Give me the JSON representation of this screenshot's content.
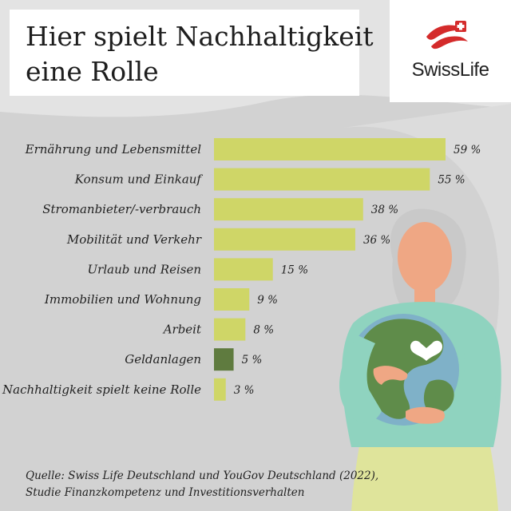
{
  "header": {
    "title_line1": "Hier spielt Nachhaltigkeit",
    "title_line2": "eine Rolle"
  },
  "logo": {
    "text": "SwissLife",
    "color": "#d42b2b",
    "icon": "swisslife-flag-icon"
  },
  "colors": {
    "bar": "#cfd667",
    "bar_highlight": "#5f7b3f",
    "background": "#e3e3e3"
  },
  "chart_data": {
    "type": "bar",
    "orientation": "horizontal",
    "categories": [
      "Ernährung und Lebensmittel",
      "Konsum und Einkauf",
      "Stromanbieter/-verbrauch",
      "Mobilität und Verkehr",
      "Urlaub und Reisen",
      "Immobilien und Wohnung",
      "Arbeit",
      "Geldanlagen",
      "Nachhaltigkeit spielt keine Rolle"
    ],
    "values": [
      59,
      55,
      38,
      36,
      15,
      9,
      8,
      5,
      3
    ],
    "value_labels": [
      "59 %",
      "55 %",
      "38 %",
      "36 %",
      "15 %",
      "9 %",
      "8 %",
      "5 %",
      "3 %"
    ],
    "highlight_index": 7,
    "unit": "%",
    "xlim": [
      0,
      59
    ]
  },
  "source": {
    "line1": "Quelle: Swiss Life Deutschland und YouGov Deutschland (2022),",
    "line2": "Studie Finanzkompetenz und Investitionsverhalten"
  }
}
